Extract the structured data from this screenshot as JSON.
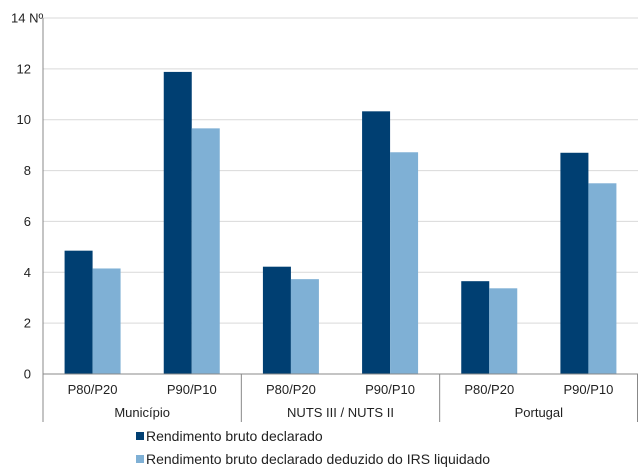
{
  "chart_data": {
    "type": "bar",
    "title": "",
    "ylabel": "Nº",
    "xlabel": "",
    "ylim": [
      0,
      14
    ],
    "yticks": [
      0,
      2,
      4,
      6,
      8,
      10,
      12,
      14
    ],
    "grid": true,
    "legend_position": "bottom",
    "groups": [
      "Município",
      "NUTS III / NUTS II",
      "Portugal"
    ],
    "categories": [
      "P80/P20",
      "P90/P10",
      "P80/P20",
      "P90/P10",
      "P80/P20",
      "P90/P10"
    ],
    "series": [
      {
        "name": "Rendimento bruto declarado",
        "color": "#003F72",
        "values": [
          4.85,
          11.88,
          4.22,
          10.33,
          3.65,
          8.7
        ]
      },
      {
        "name": "Rendimento bruto declarado deduzido do IRS liquidado",
        "color": "#7FB0D5",
        "values": [
          4.15,
          9.66,
          3.73,
          8.72,
          3.37,
          7.5
        ]
      }
    ]
  }
}
